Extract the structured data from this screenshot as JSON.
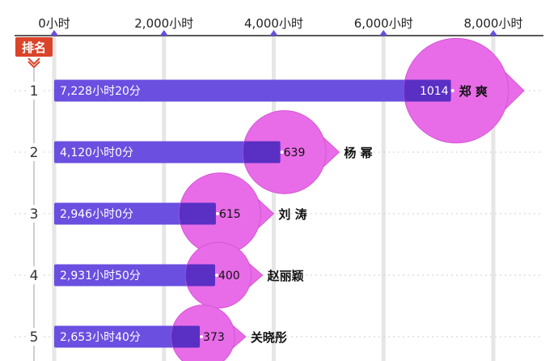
{
  "header": {
    "rank_badge": "排名"
  },
  "colors": {
    "bar": "#6a4fe0",
    "bar_dark": "#5a2fc4",
    "bubble": "#e86ce8",
    "bubble_stroke": "#d456d4",
    "badge": "#d9442a",
    "grid": "#e6e6e6",
    "axis": "#222222",
    "tick_marker": "#6a4fe0"
  },
  "chart_data": {
    "type": "bar",
    "orientation": "horizontal",
    "x_ticks": [
      {
        "value": 0,
        "label": "0小时"
      },
      {
        "value": 2000,
        "label": "2,000小时"
      },
      {
        "value": 4000,
        "label": "4,000小时"
      },
      {
        "value": 6000,
        "label": "6,000小时"
      },
      {
        "value": 8000,
        "label": "8,000小时"
      }
    ],
    "xlim": [
      0,
      8000
    ],
    "rows": [
      {
        "rank": "1",
        "hours": 7228.33,
        "bar_label": "7,228小时20分",
        "count": 1014,
        "count_label": "1014",
        "name": "郑 爽"
      },
      {
        "rank": "2",
        "hours": 4120,
        "bar_label": "4,120小时0分",
        "count": 639,
        "count_label": "639",
        "name": "杨 幂"
      },
      {
        "rank": "3",
        "hours": 2946,
        "bar_label": "2,946小时0分",
        "count": 615,
        "count_label": "615",
        "name": "刘 涛"
      },
      {
        "rank": "4",
        "hours": 2931.83,
        "bar_label": "2,931小时50分",
        "count": 400,
        "count_label": "400",
        "name": "赵丽颖"
      },
      {
        "rank": "5",
        "hours": 2653.67,
        "bar_label": "2,653小时40分",
        "count": 373,
        "count_label": "373",
        "name": "关晓彤"
      }
    ],
    "grid": true
  }
}
